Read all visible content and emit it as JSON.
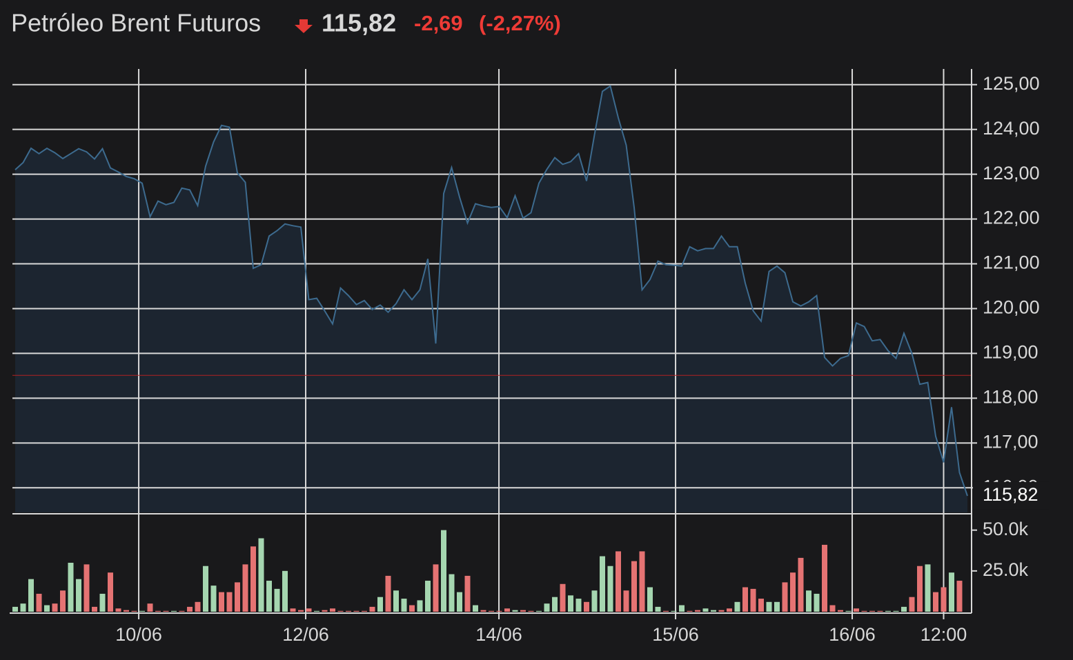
{
  "chart_data": {
    "type": "line",
    "title": "Petróleo Brent Futuros",
    "price": "115,82",
    "change": "-2,69",
    "change_percent": "(-2,27%)",
    "line_color": "#3d6b8f",
    "fill_color": "#1c2530",
    "reference_line": 118.51,
    "reference_color": "#b22222",
    "grid": true,
    "values": [
      123.1,
      123.26,
      123.58,
      123.46,
      123.58,
      123.48,
      123.35,
      123.46,
      123.57,
      123.5,
      123.34,
      123.57,
      123.14,
      123.05,
      122.95,
      122.9,
      122.8,
      122.05,
      122.4,
      122.32,
      122.37,
      122.69,
      122.65,
      122.3,
      123.18,
      123.72,
      124.09,
      124.05,
      123.03,
      122.82,
      120.9,
      120.98,
      121.62,
      121.74,
      121.89,
      121.85,
      121.82,
      120.2,
      120.23,
      119.95,
      119.66,
      120.46,
      120.29,
      120.09,
      120.18,
      119.98,
      120.08,
      119.92,
      120.11,
      120.42,
      120.2,
      120.42,
      121.11,
      119.22,
      122.57,
      123.15,
      122.49,
      121.91,
      122.34,
      122.29,
      122.26,
      122.28,
      122.03,
      122.52,
      122.02,
      122.14,
      122.8,
      123.11,
      123.37,
      123.22,
      123.28,
      123.46,
      122.85,
      123.88,
      124.85,
      124.97,
      124.26,
      123.65,
      122.26,
      120.42,
      120.65,
      121.06,
      120.98,
      120.97,
      120.95,
      121.38,
      121.29,
      121.34,
      121.34,
      121.62,
      121.38,
      121.38,
      120.57,
      119.95,
      119.72,
      120.83,
      120.95,
      120.8,
      120.15,
      120.06,
      120.15,
      120.29,
      118.91,
      118.72,
      118.89,
      118.95,
      119.68,
      119.6,
      119.28,
      119.31,
      119.06,
      118.89,
      119.45,
      119.0,
      118.31,
      118.35,
      117.15,
      116.57,
      117.8,
      116.34,
      115.82
    ],
    "xlim": [
      0,
      120
    ],
    "xticks": [
      {
        "value": 15.57,
        "label": "10/06"
      },
      {
        "value": 36.61,
        "label": "12/06"
      },
      {
        "value": 60.96,
        "label": "14/06"
      },
      {
        "value": 83.22,
        "label": "15/06"
      },
      {
        "value": 105.48,
        "label": "16/06"
      },
      {
        "value": 117.0,
        "label": "12:00"
      }
    ],
    "ylim": [
      115.45,
      125.35
    ],
    "yticks": [
      {
        "value": 116,
        "label": "116,00"
      },
      {
        "value": 117,
        "label": "117,00"
      },
      {
        "value": 118,
        "label": "118,00"
      },
      {
        "value": 119,
        "label": "119,00"
      },
      {
        "value": 120,
        "label": "120,00"
      },
      {
        "value": 121,
        "label": "121,00"
      },
      {
        "value": 122,
        "label": "122,00"
      },
      {
        "value": 123,
        "label": "123,00"
      },
      {
        "value": 124,
        "label": "124,00"
      },
      {
        "value": 125,
        "label": "125,00"
      }
    ],
    "volume": {
      "values": [
        3000,
        5000,
        20000,
        11000,
        4000,
        5000,
        13000,
        30000,
        20000,
        29000,
        3000,
        11000,
        24000,
        2000,
        1000,
        500,
        500,
        5000,
        500,
        500,
        500,
        500,
        3000,
        6000,
        28000,
        16000,
        12000,
        12000,
        18000,
        29000,
        40000,
        45000,
        19000,
        14000,
        25000,
        2000,
        1000,
        2000,
        500,
        1000,
        2000,
        500,
        500,
        500,
        500,
        3000,
        9000,
        22000,
        13000,
        8000,
        4000,
        7000,
        19000,
        29000,
        50000,
        23000,
        12000,
        22000,
        4000,
        1000,
        500,
        500,
        2000,
        1000,
        1000,
        500,
        500,
        5000,
        9000,
        17000,
        10000,
        8000,
        6000,
        13000,
        34000,
        28000,
        37000,
        13000,
        31000,
        37000,
        15000,
        3000,
        500,
        500,
        4000,
        500,
        1000,
        2000,
        1000,
        1000,
        2000,
        6000,
        15000,
        14000,
        8000,
        6000,
        6000,
        18000,
        24000,
        33000,
        13000,
        11000,
        41000,
        4000,
        1000,
        500,
        2000,
        500,
        500,
        500,
        500,
        500,
        3000,
        9000,
        28000,
        29000,
        12000,
        15000,
        24000,
        19000
      ],
      "colors": [
        "#a5d6b0",
        "#a5d6b0",
        "#a5d6b0",
        "#e57373",
        "#a5d6b0",
        "#e57373",
        "#e57373",
        "#a5d6b0",
        "#a5d6b0",
        "#e57373",
        "#e57373",
        "#a5d6b0",
        "#e57373",
        "#e57373",
        "#e57373",
        "#e57373",
        "#a5d6b0",
        "#e57373",
        "#e57373",
        "#e57373",
        "#a5d6b0",
        "#e57373",
        "#e57373",
        "#e57373",
        "#a5d6b0",
        "#a5d6b0",
        "#e57373",
        "#e57373",
        "#e57373",
        "#e57373",
        "#e57373",
        "#a5d6b0",
        "#a5d6b0",
        "#a5d6b0",
        "#a5d6b0",
        "#e57373",
        "#e57373",
        "#e57373",
        "#a5d6b0",
        "#e57373",
        "#e57373",
        "#e57373",
        "#e57373",
        "#e57373",
        "#e57373",
        "#e57373",
        "#a5d6b0",
        "#e57373",
        "#a5d6b0",
        "#a5d6b0",
        "#e57373",
        "#a5d6b0",
        "#a5d6b0",
        "#e57373",
        "#a5d6b0",
        "#a5d6b0",
        "#a5d6b0",
        "#e57373",
        "#a5d6b0",
        "#e57373",
        "#e57373",
        "#e57373",
        "#e57373",
        "#a5d6b0",
        "#e57373",
        "#e57373",
        "#a5d6b0",
        "#a5d6b0",
        "#a5d6b0",
        "#e57373",
        "#a5d6b0",
        "#a5d6b0",
        "#e57373",
        "#a5d6b0",
        "#a5d6b0",
        "#a5d6b0",
        "#e57373",
        "#e57373",
        "#e57373",
        "#e57373",
        "#a5d6b0",
        "#a5d6b0",
        "#e57373",
        "#a5d6b0",
        "#a5d6b0",
        "#e57373",
        "#e57373",
        "#a5d6b0",
        "#a5d6b0",
        "#e57373",
        "#e57373",
        "#a5d6b0",
        "#e57373",
        "#e57373",
        "#e57373",
        "#a5d6b0",
        "#a5d6b0",
        "#e57373",
        "#e57373",
        "#e57373",
        "#a5d6b0",
        "#a5d6b0",
        "#e57373",
        "#e57373",
        "#e57373",
        "#a5d6b0",
        "#e57373",
        "#e57373",
        "#e57373",
        "#e57373",
        "#a5d6b0",
        "#a5d6b0",
        "#a5d6b0",
        "#e57373",
        "#e57373",
        "#a5d6b0",
        "#e57373",
        "#e57373",
        "#a5d6b0",
        "#e57373"
      ],
      "ylim": [
        0,
        60000
      ],
      "yticks": [
        {
          "value": 25000,
          "label": "25.0k"
        },
        {
          "value": 50000,
          "label": "50.0k"
        }
      ]
    }
  }
}
